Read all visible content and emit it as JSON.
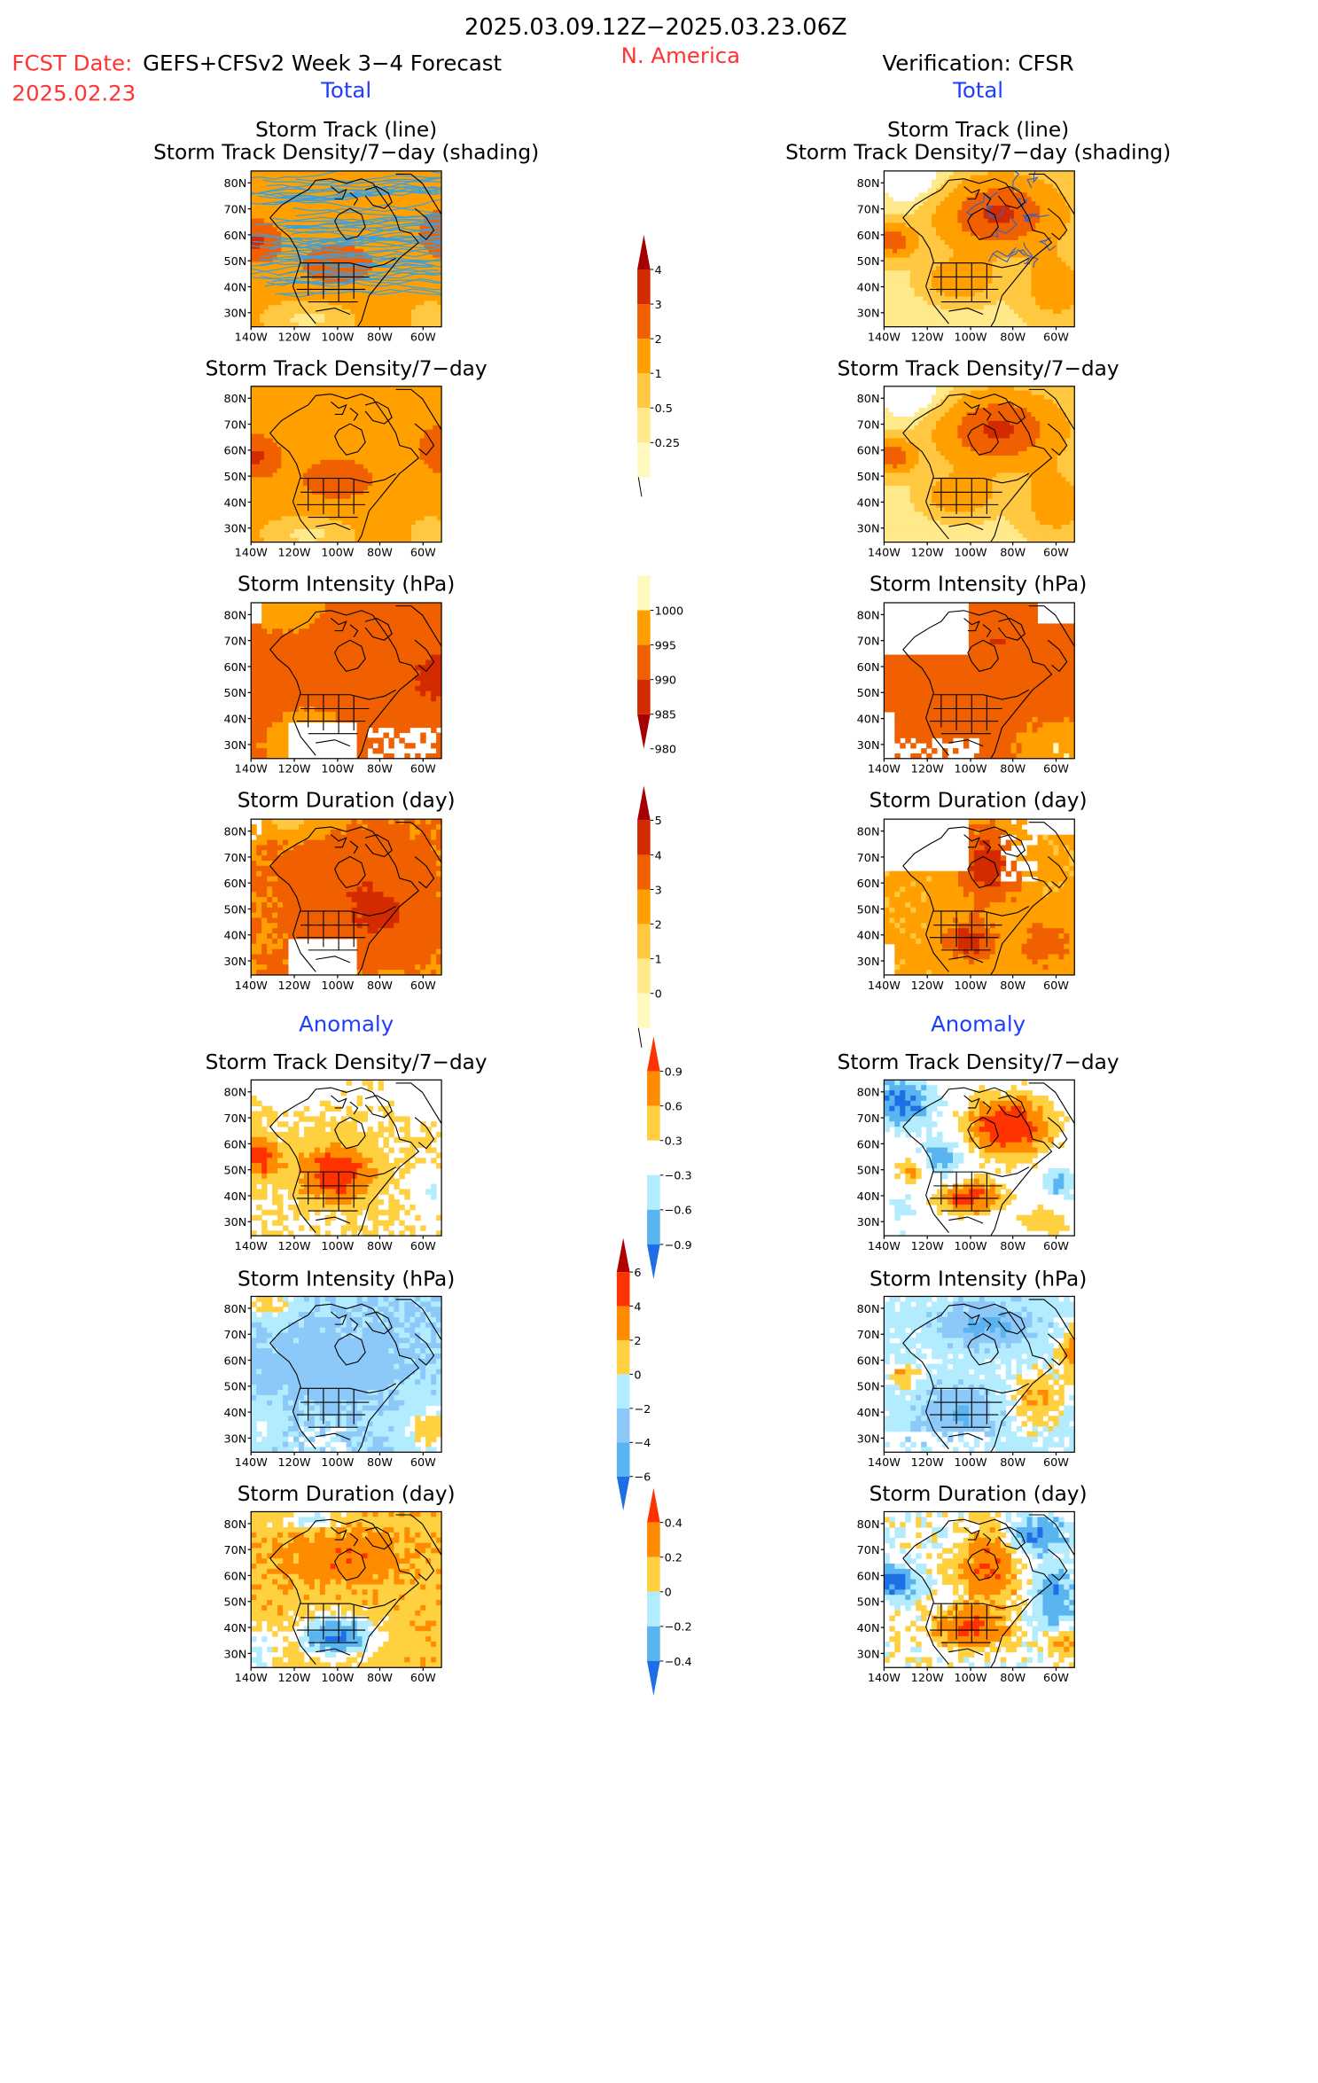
{
  "header": {
    "period": "2025.03.09.12Z−2025.03.23.06Z",
    "fcst_label": "FCST Date:",
    "fcst_model": "GEFS+CFSv2 Week 3−4 Forecast",
    "fcst_date": "2025.02.23",
    "region": "N. America",
    "verification": "Verification: CFSR"
  },
  "section_labels": {
    "total": "Total",
    "anomaly": "Anomaly"
  },
  "panel_titles": {
    "track_line": "Storm Track (line)",
    "track_density_shading": "Storm Track Density/7−day (shading)",
    "track_density": "Storm Track Density/7−day",
    "intensity": "Storm Intensity (hPa)",
    "duration": "Storm Duration (day)"
  },
  "axes": {
    "lon_labels": [
      "140W",
      "120W",
      "100W",
      "80W",
      "60W"
    ],
    "lat_labels": [
      "80N",
      "70N",
      "60N",
      "50N",
      "40N",
      "30N"
    ]
  },
  "colorbars": {
    "density": {
      "labels": [
        "4",
        "3",
        "2",
        "1",
        "0.5",
        "0.25"
      ],
      "colors": [
        "#a50000",
        "#d42a00",
        "#f06000",
        "#ffa000",
        "#ffc840",
        "#ffe98a",
        "#fff8c0"
      ]
    },
    "intensity": {
      "labels": [
        "1000",
        "995",
        "990",
        "985",
        "980"
      ],
      "colors": [
        "#fff8c0",
        "#ffa000",
        "#f06000",
        "#d42a00",
        "#a50000"
      ]
    },
    "duration": {
      "labels": [
        "5",
        "4",
        "3",
        "2",
        "1",
        "0"
      ],
      "colors": [
        "#a50000",
        "#d42a00",
        "#f06000",
        "#ffa000",
        "#ffc840",
        "#ffe98a",
        "#fff8c0"
      ]
    },
    "density_anom": {
      "labels": [
        "0.9",
        "0.6",
        "0.3",
        "−0.3",
        "−0.6",
        "−0.9"
      ],
      "colors": [
        "#ff3300",
        "#ff8c00",
        "#ffd040",
        "#ffffff",
        "#b4ecff",
        "#5ab4f0",
        "#1e6ee6"
      ]
    },
    "intensity_anom": {
      "labels": [
        "6",
        "4",
        "2",
        "0",
        "−2",
        "−4",
        "−6"
      ],
      "colors": [
        "#b00000",
        "#ff3300",
        "#ff8c00",
        "#ffd040",
        "#b4ecff",
        "#8cc8f8",
        "#5ab4f0",
        "#1e6ee6"
      ]
    },
    "duration_anom": {
      "labels": [
        "0.4",
        "0.2",
        "0",
        "−0.2",
        "−0.4"
      ],
      "colors": [
        "#ff3300",
        "#ff8c00",
        "#ffd040",
        "#b4ecff",
        "#5ab4f0",
        "#1e6ee6"
      ]
    }
  },
  "colors": {
    "title_red": "#ff3333",
    "label_blue": "#1f3dff",
    "track_line_forecast": "#3aa0e0",
    "track_line_observed": "#4060c0"
  }
}
